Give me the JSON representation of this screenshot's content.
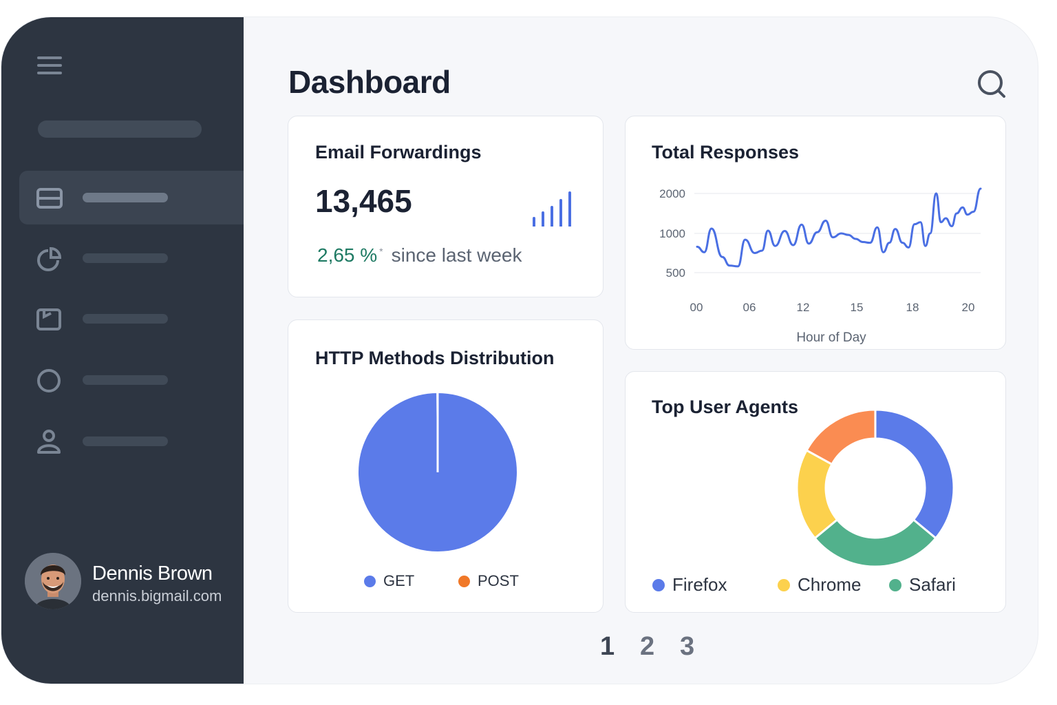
{
  "header": {
    "title": "Dashboard"
  },
  "sidebar": {
    "items": [
      {
        "icon": "list-icon",
        "active": true
      },
      {
        "icon": "pie-chart-icon",
        "active": false
      },
      {
        "icon": "folder-icon",
        "active": false
      },
      {
        "icon": "circle-icon",
        "active": false
      },
      {
        "icon": "user-icon",
        "active": false
      }
    ],
    "user": {
      "name": "Dennis Brown",
      "email": "dennis.bigmail.com"
    }
  },
  "email_card": {
    "title": "Email Forwardings",
    "value": "13,465",
    "trend_value": "2,65 %",
    "trend_mark": "*",
    "trend_label": "since last week"
  },
  "responses_card": {
    "title": "Total Responses"
  },
  "http_card": {
    "title": "HTTP Methods Distribution",
    "legend": [
      {
        "label": "GET",
        "color": "#5b7be9"
      },
      {
        "label": "POST",
        "color": "#f07828"
      }
    ]
  },
  "agents_card": {
    "title": "Top User Agents",
    "legend": [
      {
        "label": "Firefox",
        "color": "#5b7be9"
      },
      {
        "label": "Chrome",
        "color": "#fcd14d"
      },
      {
        "label": "Safari",
        "color": "#52b18c"
      }
    ]
  },
  "pagination": {
    "pages": [
      "1",
      "2",
      "3"
    ],
    "current": "1"
  },
  "colors": {
    "accent": "#5b7be9",
    "trend_positive": "#1e7a63",
    "sidebar_bg": "#2d3541",
    "other_segment": "#fa8c52"
  },
  "chart_data": [
    {
      "type": "line",
      "title": "Total Responses",
      "xlabel": "Hour of Day",
      "ylabel": "",
      "x_ticks": [
        "00",
        "06",
        "12",
        "15",
        "18",
        "20"
      ],
      "y_ticks": [
        500,
        1000,
        2000
      ],
      "ylim": [
        500,
        2000
      ],
      "grid": true,
      "series": [
        {
          "x": [
            0,
            0.6,
            1.2,
            2.1,
            2.7,
            3.4,
            4.0,
            4.8,
            5.4,
            5.9,
            6.5,
            7.3,
            8.0,
            8.7,
            9.3,
            10.0,
            10.7,
            11.3,
            12.0,
            12.6,
            13.2,
            13.8,
            14.4,
            15.0,
            15.5,
            16.0,
            16.5,
            17.1,
            17.6,
            18.1,
            18.6,
            19.0,
            19.4,
            19.9,
            20.3,
            20.7,
            21.2,
            21.6,
            22.1,
            22.5,
            23.0,
            23.6
          ],
          "values": [
            830,
            760,
            1120,
            700,
            590,
            580,
            920,
            750,
            780,
            1070,
            840,
            1060,
            850,
            1220,
            870,
            1030,
            1320,
            950,
            1000,
            980,
            930,
            890,
            880,
            1150,
            760,
            880,
            1110,
            880,
            820,
            1230,
            1280,
            840,
            1000,
            2000,
            1280,
            1380,
            1180,
            1500,
            1650,
            1470,
            1540,
            2120
          ]
        }
      ]
    },
    {
      "type": "pie",
      "title": "HTTP Methods Distribution",
      "labels": [
        "GET",
        "POST"
      ],
      "values": [
        99.9,
        0.1
      ],
      "legend": "bottom"
    },
    {
      "type": "pie",
      "title": "Top User Agents",
      "labels": [
        "Firefox",
        "Safari",
        "Chrome",
        ""
      ],
      "values": [
        36,
        28,
        19,
        17
      ],
      "colors": [
        "#5b7be9",
        "#52b18c",
        "#fcd14d",
        "#fa8c52"
      ],
      "legend": "bottom"
    }
  ]
}
